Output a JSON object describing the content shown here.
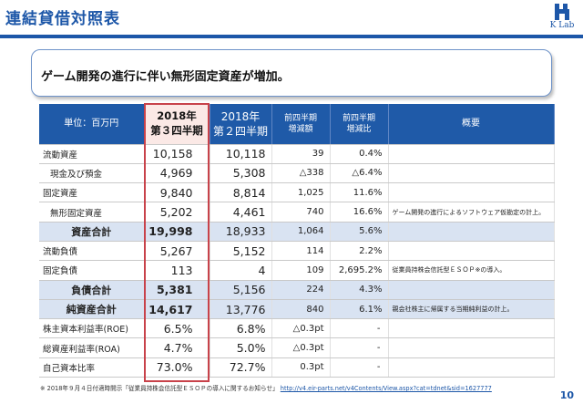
{
  "slide": {
    "title": "連結貸借対照表",
    "logo_text": "K Lab",
    "headline": "ゲーム開発の進行に伴い無形固定資産が増加。",
    "page_number": "10",
    "accent_color": "#1d57a8",
    "highlight_color": "#c8424a"
  },
  "table": {
    "headers": {
      "unit": "単位：百万円",
      "current_year": "2018年",
      "current_quarter": "第３四半期",
      "prev_year": "2018年",
      "prev_quarter": "第２四半期",
      "change_line1": "前四半期",
      "change_line2": "増減額",
      "ratio_line1": "前四半期",
      "ratio_line2": "増減比",
      "notes": "概要"
    },
    "rows": [
      {
        "label": "流動資産",
        "current": "10,158",
        "previous": "10,118",
        "change": "39",
        "ratio": "0.4%",
        "note": ""
      },
      {
        "label": "現金及び預金",
        "current": "4,969",
        "previous": "5,308",
        "change": "△338",
        "ratio": "△6.4%",
        "note": ""
      },
      {
        "label": "固定資産",
        "current": "9,840",
        "previous": "8,814",
        "change": "1,025",
        "ratio": "11.6%",
        "note": ""
      },
      {
        "label": "無形固定資産",
        "current": "5,202",
        "previous": "4,461",
        "change": "740",
        "ratio": "16.6%",
        "note": "ゲーム開発の進行によるソフトウェア仮勘定の計上。"
      },
      {
        "label": "資産合計",
        "current": "19,998",
        "previous": "18,933",
        "change": "1,064",
        "ratio": "5.6%",
        "note": ""
      },
      {
        "label": "流動負債",
        "current": "5,267",
        "previous": "5,152",
        "change": "114",
        "ratio": "2.2%",
        "note": ""
      },
      {
        "label": "固定負債",
        "current": "113",
        "previous": "4",
        "change": "109",
        "ratio": "2,695.2%",
        "note": "従業員持株会信託型ＥＳＯＰ※の導入。"
      },
      {
        "label": "負債合計",
        "current": "5,381",
        "previous": "5,156",
        "change": "224",
        "ratio": "4.3%",
        "note": ""
      },
      {
        "label": "純資産合計",
        "current": "14,617",
        "previous": "13,776",
        "change": "840",
        "ratio": "6.1%",
        "note": "親会社株主に帰属する当期純利益の計上。"
      },
      {
        "label": "株主資本利益率(ROE)",
        "current": "6.5%",
        "previous": "6.8%",
        "change": "△0.3pt",
        "ratio": "-",
        "note": ""
      },
      {
        "label": "総資産利益率(ROA)",
        "current": "4.7%",
        "previous": "5.0%",
        "change": "△0.3pt",
        "ratio": "-",
        "note": ""
      },
      {
        "label": "自己資本比率",
        "current": "73.0%",
        "previous": "72.7%",
        "change": "0.3pt",
        "ratio": "-",
        "note": ""
      }
    ]
  },
  "footnote": {
    "text": "※ 2018年９月４日付適時開示「従業員持株会信託型ＥＳＯＰの導入に関するお知らせ」",
    "link": "http://v4.eir-parts.net/v4Contents/View.aspx?cat=tdnet&sid=1627777"
  }
}
